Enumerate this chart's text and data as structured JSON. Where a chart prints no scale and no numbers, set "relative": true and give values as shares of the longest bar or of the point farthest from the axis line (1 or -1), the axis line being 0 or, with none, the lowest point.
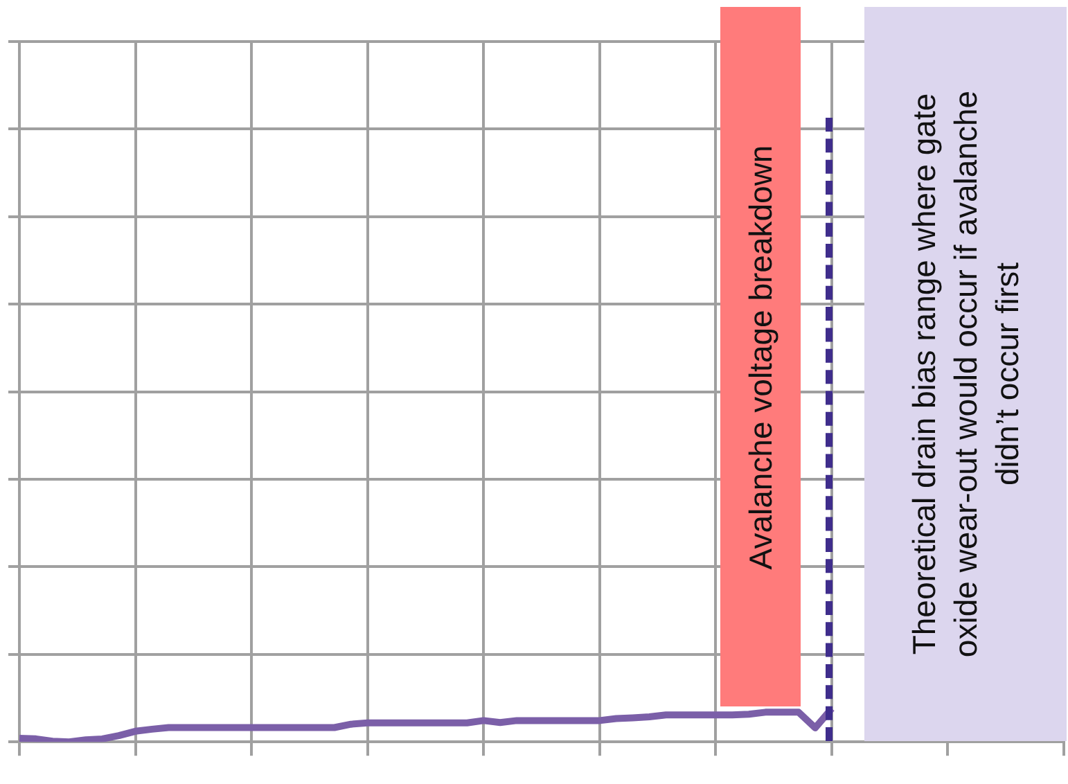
{
  "chart_data": {
    "type": "line",
    "relative": true,
    "grid": true,
    "legend": false,
    "marker": "none",
    "categories": [
      null,
      null,
      null,
      null,
      null,
      null,
      null,
      null,
      null,
      null,
      null,
      null,
      null,
      null,
      null,
      null,
      null,
      null,
      null,
      null,
      null,
      null,
      null,
      null,
      null,
      null,
      null,
      null,
      null,
      null,
      null,
      null,
      null,
      null,
      null,
      null,
      null,
      null,
      null,
      null,
      null,
      null,
      null,
      null,
      null,
      null,
      null,
      null,
      null,
      null,
      null,
      null,
      null,
      null,
      null,
      null,
      null,
      null,
      null,
      null,
      null,
      null,
      null,
      null
    ],
    "series": [
      {
        "color": "#7b5fa8",
        "values": [
          0.11,
          0.09,
          0.02,
          0,
          0.06,
          0.09,
          0.19,
          0.32,
          0.38,
          0.43,
          0.43,
          0.43,
          0.43,
          0.43,
          0.43,
          0.43,
          0.43,
          0.43,
          0.43,
          0.43,
          0.53,
          0.57,
          0.57,
          0.57,
          0.57,
          0.57,
          0.57,
          0.57,
          0.64,
          0.58,
          0.64,
          0.64,
          0.64,
          0.64,
          0.64,
          0.64,
          0.7,
          0.72,
          0.75,
          0.81,
          0.81,
          0.81,
          0.81,
          0.81,
          0.83,
          0.89,
          0.89,
          0.89,
          0.42,
          1,
          null,
          null,
          null,
          null,
          null,
          null,
          null,
          null,
          null,
          null,
          null,
          null,
          null,
          null
        ]
      }
    ],
    "annotations": [
      "Avalanche voltage breakdown",
      "Theoretical drain bias range where gate oxide wear-out would occur if avalanche didn’t occur first"
    ]
  }
}
